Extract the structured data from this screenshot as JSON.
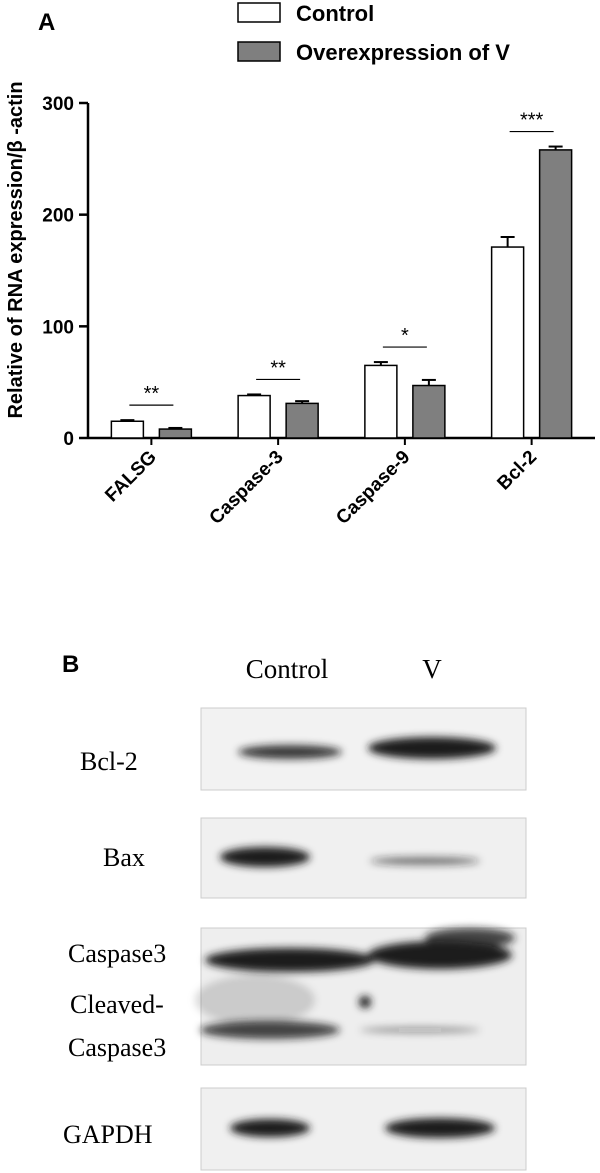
{
  "chart_data": {
    "type": "bar",
    "panel_label": "A",
    "y_label": "Relative of RNA expression/β -actin",
    "categories": [
      "FALSG",
      "Caspase-3",
      "Caspase-9",
      "Bcl-2"
    ],
    "series": [
      {
        "name": "Control",
        "color": "#ffffff",
        "values": [
          15,
          38,
          65,
          171
        ],
        "errors": [
          1,
          1,
          3,
          9
        ]
      },
      {
        "name": "Overexpression of V",
        "color": "#7f7f7f",
        "values": [
          8,
          31,
          47,
          258
        ],
        "errors": [
          1,
          2,
          5,
          3
        ]
      }
    ],
    "annotations": [
      "**",
      "**",
      "*",
      "***"
    ],
    "ylim": [
      0,
      300
    ],
    "yticks": [
      0,
      100,
      200,
      300
    ]
  },
  "blot": {
    "panel_label": "B",
    "lanes": [
      "Control",
      "V"
    ],
    "row_labels": [
      "Bcl-2",
      "Bax",
      "Caspase3",
      "Cleaved-",
      "Caspase3",
      "GAPDH"
    ]
  }
}
